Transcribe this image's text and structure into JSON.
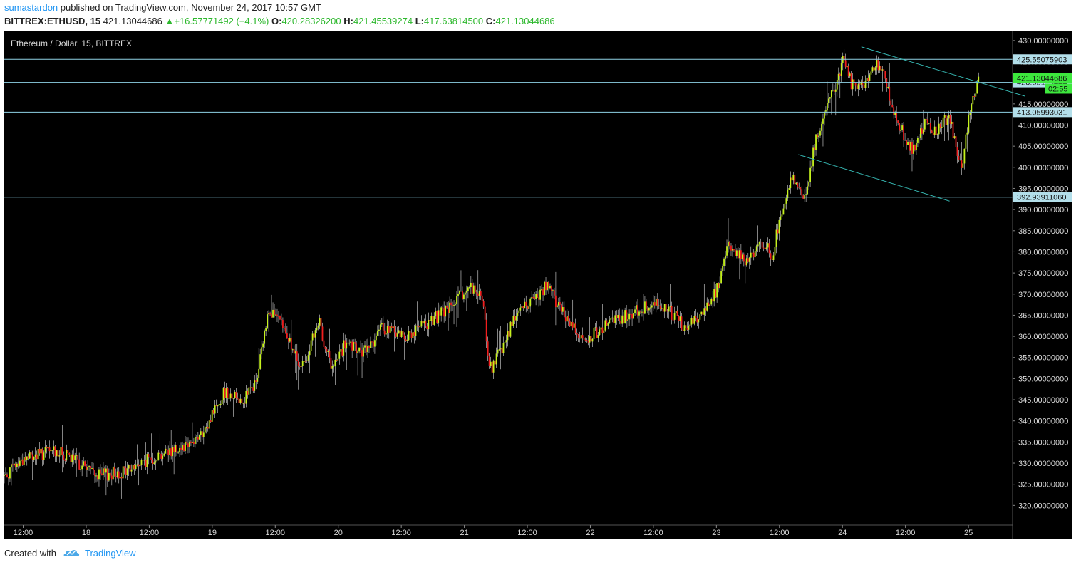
{
  "header": {
    "author": "sumastardon",
    "published_text": "published on TradingView.com, November 24, 2017 10:57 GMT",
    "symbol": "BITTREX:ETHUSD, 15",
    "last_price": "421.13044686",
    "change": "+16.57771492 (+4.1%)",
    "open_label": "O:",
    "open": "420.28326200",
    "high_label": "H:",
    "high": "421.45539274",
    "low_label": "L:",
    "low": "417.63814500",
    "close_label": "C:",
    "close": "421.13044686"
  },
  "footer": {
    "created_with": "Created with",
    "brand": "TradingView",
    "logo_icon": "tradingview-cloud-icon"
  },
  "colors": {
    "background": "#000000",
    "up": "#c6f21e",
    "down": "#f21e1e",
    "wick": "#dddddd",
    "level_line": "#8fd3e6",
    "trend_line": "#35b5b0",
    "last_price_line": "#3de83d",
    "axis_label_bg": "#b3dfea",
    "last_price_bg": "#3de83d"
  },
  "chart_data": {
    "type": "candlestick",
    "title": "Ethereum / Dollar, 15, BITTREX",
    "ylim": [
      315,
      432
    ],
    "y_ticks": [
      "430.00000000",
      "425.00000000",
      "420.00000000",
      "415.00000000",
      "410.00000000",
      "405.00000000",
      "400.00000000",
      "395.00000000",
      "390.00000000",
      "385.00000000",
      "380.00000000",
      "375.00000000",
      "370.00000000",
      "365.00000000",
      "360.00000000",
      "355.00000000",
      "350.00000000",
      "345.00000000",
      "340.00000000",
      "335.00000000",
      "330.00000000",
      "325.00000000",
      "320.00000000"
    ],
    "x_ticks": [
      "12:00",
      "18",
      "12:00",
      "19",
      "12:00",
      "20",
      "12:00",
      "21",
      "12:00",
      "22",
      "12:00",
      "23",
      "12:00",
      "24",
      "12:00",
      "25"
    ],
    "x_tick_pos": [
      0.5,
      1,
      1.5,
      2,
      2.5,
      3,
      3.5,
      4,
      4.5,
      5,
      5.5,
      6,
      6.5,
      7,
      7.5,
      8
    ],
    "x_range": [
      0.35,
      8.35
    ],
    "price_path": [
      [
        0.35,
        327
      ],
      [
        0.5,
        331
      ],
      [
        0.75,
        333
      ],
      [
        0.95,
        330
      ],
      [
        1.1,
        327
      ],
      [
        1.3,
        328
      ],
      [
        1.5,
        331
      ],
      [
        1.75,
        334
      ],
      [
        1.95,
        337
      ],
      [
        2.0,
        342
      ],
      [
        2.1,
        347
      ],
      [
        2.25,
        345
      ],
      [
        2.35,
        349
      ],
      [
        2.45,
        367
      ],
      [
        2.6,
        360
      ],
      [
        2.7,
        352
      ],
      [
        2.85,
        363
      ],
      [
        2.95,
        352
      ],
      [
        3.05,
        358
      ],
      [
        3.2,
        356
      ],
      [
        3.35,
        362
      ],
      [
        3.55,
        360
      ],
      [
        3.75,
        364
      ],
      [
        3.9,
        367
      ],
      [
        4.05,
        372
      ],
      [
        4.15,
        368
      ],
      [
        4.2,
        352
      ],
      [
        4.3,
        357
      ],
      [
        4.4,
        365
      ],
      [
        4.55,
        369
      ],
      [
        4.65,
        372
      ],
      [
        4.8,
        365
      ],
      [
        4.95,
        359
      ],
      [
        5.1,
        362
      ],
      [
        5.3,
        365
      ],
      [
        5.5,
        368
      ],
      [
        5.6,
        367
      ],
      [
        5.75,
        362
      ],
      [
        5.9,
        366
      ],
      [
        6.0,
        371
      ],
      [
        6.1,
        382
      ],
      [
        6.25,
        377
      ],
      [
        6.35,
        383
      ],
      [
        6.45,
        379
      ],
      [
        6.5,
        388
      ],
      [
        6.6,
        398
      ],
      [
        6.7,
        393
      ],
      [
        6.8,
        408
      ],
      [
        6.95,
        420
      ],
      [
        7.0,
        425
      ],
      [
        7.1,
        418
      ],
      [
        7.2,
        421
      ],
      [
        7.3,
        425
      ],
      [
        7.4,
        413
      ],
      [
        7.55,
        404
      ],
      [
        7.65,
        410
      ],
      [
        7.75,
        409
      ],
      [
        7.85,
        412
      ],
      [
        7.95,
        399
      ],
      [
        8.0,
        412
      ],
      [
        8.05,
        418
      ],
      [
        8.08,
        421.13
      ]
    ],
    "levels": [
      {
        "value": 425.55075903,
        "label": "425.55075903"
      },
      {
        "value": 420.1,
        "label": "420.05179444"
      },
      {
        "value": 413.05993031,
        "label": "413.05993031"
      },
      {
        "value": 392.9391106,
        "label": "392.93911060"
      }
    ],
    "last_price": {
      "value": 421.13044686,
      "label": "421.13044686",
      "countdown": "02:55"
    },
    "trend_lines": [
      {
        "x1": 7.15,
        "y1": 428.5,
        "x2": 8.45,
        "y2": 416.8
      },
      {
        "x1": 6.65,
        "y1": 403.0,
        "x2": 7.85,
        "y2": 392.0
      }
    ]
  }
}
